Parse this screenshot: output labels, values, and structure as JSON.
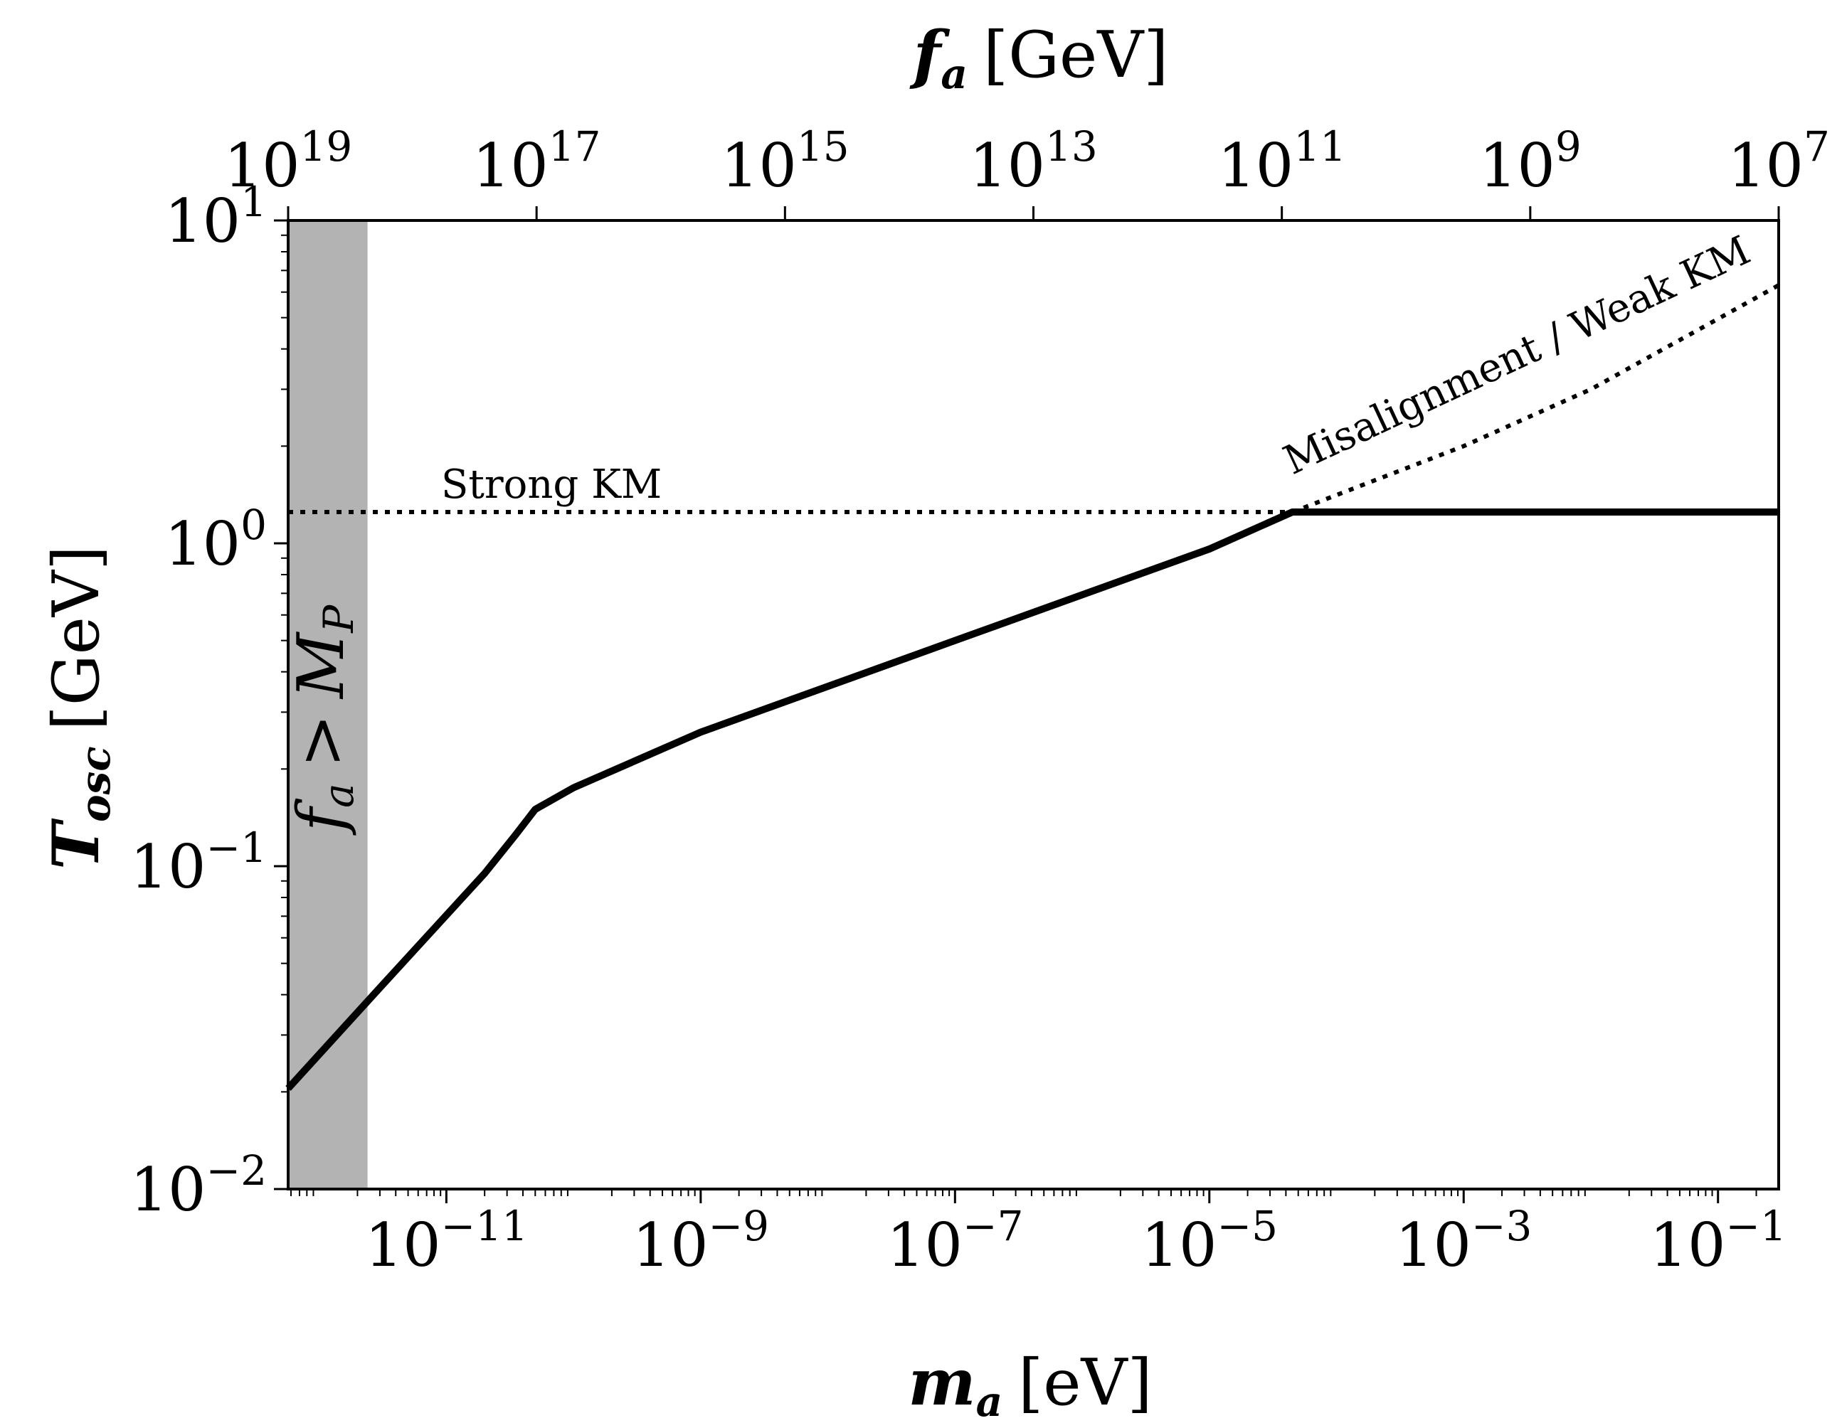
{
  "chart_data": {
    "type": "line",
    "xlabel_var": "m",
    "xlabel_sub": "a",
    "xlabel_unit": "[eV]",
    "x2label_var": "f",
    "x2label_sub": "a",
    "x2label_unit": "[GeV]",
    "ylabel_var": "T",
    "ylabel_sub": "osc",
    "ylabel_unit": "[GeV]",
    "x_scale": "log",
    "y_scale": "log",
    "xlim": [
      5.7e-13,
      0.3
    ],
    "ylim": [
      0.01,
      10
    ],
    "x2lim": [
      1e+19,
      10000000.0
    ],
    "x_ticks": [
      {
        "value": 1e-11,
        "base": "10",
        "exp": "−11"
      },
      {
        "value": 1e-09,
        "base": "10",
        "exp": "−9"
      },
      {
        "value": 1e-07,
        "base": "10",
        "exp": "−7"
      },
      {
        "value": 1e-05,
        "base": "10",
        "exp": "−5"
      },
      {
        "value": 0.001,
        "base": "10",
        "exp": "−3"
      },
      {
        "value": 0.1,
        "base": "10",
        "exp": "−1"
      }
    ],
    "y_ticks": [
      {
        "value": 0.01,
        "base": "10",
        "exp": "−2"
      },
      {
        "value": 0.1,
        "base": "10",
        "exp": "−1"
      },
      {
        "value": 1,
        "base": "10",
        "exp": "0"
      },
      {
        "value": 10,
        "base": "10",
        "exp": "1"
      }
    ],
    "x2_ticks": [
      {
        "value": 1e+19,
        "base": "10",
        "exp": "19"
      },
      {
        "value": 1e+17,
        "base": "10",
        "exp": "17"
      },
      {
        "value": 1000000000000000.0,
        "base": "10",
        "exp": "15"
      },
      {
        "value": 10000000000000.0,
        "base": "10",
        "exp": "13"
      },
      {
        "value": 100000000000.0,
        "base": "10",
        "exp": "11"
      },
      {
        "value": 1000000000.0,
        "base": "10",
        "exp": "9"
      },
      {
        "value": 10000000.0,
        "base": "10",
        "exp": "7"
      }
    ],
    "series": [
      {
        "name": "T_osc",
        "style": "solid",
        "x": [
          5.7e-13,
          3e-12,
          2e-11,
          3.5e-11,
          5e-11,
          1e-10,
          1e-09,
          1e-07,
          1e-05,
          4.5e-05,
          0.3
        ],
        "y": [
          0.0205,
          0.042,
          0.095,
          0.125,
          0.15,
          0.175,
          0.26,
          0.5,
          0.96,
          1.25,
          1.25
        ]
      },
      {
        "name": "Strong KM",
        "style": "dotted",
        "x": [
          5.7e-13,
          4.5e-05
        ],
        "y": [
          1.25,
          1.25
        ]
      },
      {
        "name": "Misalignment / Weak KM",
        "style": "dotted",
        "x": [
          4.5e-05,
          0.001,
          0.01,
          0.3
        ],
        "y": [
          1.25,
          2.0,
          3.0,
          6.3
        ]
      }
    ],
    "shaded_region": {
      "label_var": "f",
      "label_sub": "a",
      "label_op": ">",
      "label_rhs_var": "M",
      "label_rhs_sub": "P",
      "x_range": [
        5.7e-13,
        2.4e-12
      ],
      "color": "#b3b3b3"
    },
    "annotations": {
      "strong": "Strong KM",
      "weak": "Misalignment / Weak KM"
    },
    "grid": false
  }
}
